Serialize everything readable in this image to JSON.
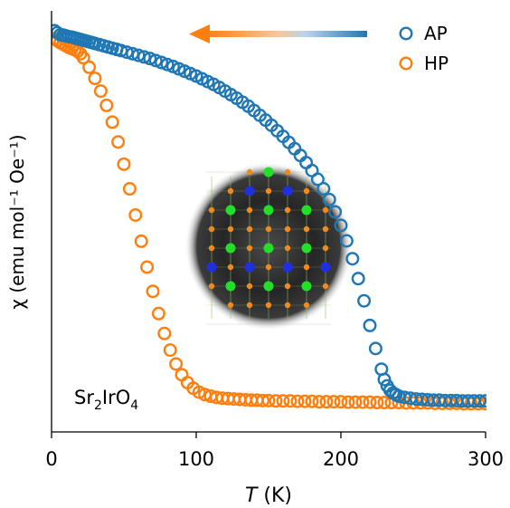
{
  "chart_data": {
    "type": "scatter",
    "xlabel_var": "T",
    "xlabel_unit": "(K)",
    "ylabel": "χ (emu mol⁻¹ Oe⁻¹)",
    "xlim": [
      0,
      300
    ],
    "ylim": [
      0,
      1.06
    ],
    "x_ticks": [
      0,
      100,
      200,
      300
    ],
    "y_ticks_visible": false,
    "grid": false,
    "legend_position": "top-right",
    "annotation": {
      "text_main": "Sr",
      "sub1": "2",
      "mid": "IrO",
      "sub2": "4"
    },
    "arrow": {
      "direction": "left",
      "from_color": "#1f77b4",
      "to_color": "#ff7f0e"
    },
    "inset": "crystal-structure-image",
    "series": [
      {
        "name": "AP",
        "color": "#1f77b4",
        "marker": "open-circle",
        "x": [
          2,
          4,
          6,
          8,
          10,
          12,
          14,
          16,
          18,
          20,
          22,
          24,
          26,
          28,
          30,
          33,
          36,
          39,
          42,
          45,
          48,
          52,
          56,
          60,
          64,
          68,
          72,
          76,
          80,
          84,
          88,
          92,
          96,
          100,
          104,
          108,
          112,
          116,
          120,
          124,
          128,
          132,
          136,
          140,
          144,
          148,
          152,
          156,
          160,
          164,
          168,
          172,
          176,
          180,
          184,
          188,
          192,
          196,
          200,
          204,
          208,
          212,
          216,
          220,
          224,
          228,
          230,
          232,
          234,
          236,
          238,
          240,
          244,
          248,
          252,
          256,
          260,
          264,
          268,
          272,
          276,
          280,
          284,
          288,
          292,
          296,
          300
        ],
        "y": [
          1.01,
          1.005,
          1.0,
          0.999,
          0.997,
          0.995,
          0.994,
          0.992,
          0.99,
          0.988,
          0.986,
          0.984,
          0.982,
          0.98,
          0.978,
          0.975,
          0.972,
          0.969,
          0.966,
          0.963,
          0.96,
          0.956,
          0.952,
          0.948,
          0.944,
          0.94,
          0.935,
          0.93,
          0.925,
          0.92,
          0.914,
          0.908,
          0.902,
          0.896,
          0.889,
          0.882,
          0.875,
          0.867,
          0.858,
          0.849,
          0.84,
          0.83,
          0.82,
          0.809,
          0.797,
          0.785,
          0.772,
          0.758,
          0.744,
          0.729,
          0.713,
          0.696,
          0.678,
          0.658,
          0.636,
          0.612,
          0.585,
          0.554,
          0.52,
          0.481,
          0.436,
          0.386,
          0.33,
          0.268,
          0.21,
          0.158,
          0.132,
          0.116,
          0.105,
          0.098,
          0.094,
          0.09,
          0.087,
          0.085,
          0.083,
          0.082,
          0.081,
          0.08,
          0.08,
          0.079,
          0.079,
          0.079,
          0.078,
          0.078,
          0.078,
          0.078,
          0.078
        ]
      },
      {
        "name": "HP",
        "color": "#ff7f0e",
        "marker": "open-circle",
        "x": [
          2,
          4,
          6,
          8,
          10,
          12,
          14,
          16,
          18,
          20,
          22,
          26,
          30,
          34,
          38,
          42,
          46,
          50,
          54,
          58,
          62,
          66,
          70,
          74,
          78,
          82,
          86,
          90,
          94,
          98,
          102,
          106,
          110,
          114,
          118,
          122,
          126,
          130,
          134,
          138,
          142,
          146,
          150,
          155,
          160,
          165,
          170,
          175,
          180,
          185,
          190,
          195,
          200,
          205,
          210,
          215,
          220,
          225,
          230,
          235,
          240,
          245,
          250,
          255,
          260,
          265,
          270,
          275,
          280,
          285,
          290,
          295,
          300
        ],
        "y": [
          0.99,
          0.985,
          0.98,
          0.976,
          0.972,
          0.968,
          0.965,
          0.962,
          0.958,
          0.952,
          0.942,
          0.918,
          0.89,
          0.858,
          0.822,
          0.78,
          0.73,
          0.674,
          0.612,
          0.546,
          0.48,
          0.415,
          0.354,
          0.298,
          0.248,
          0.206,
          0.171,
          0.144,
          0.124,
          0.11,
          0.1,
          0.094,
          0.09,
          0.087,
          0.085,
          0.084,
          0.083,
          0.082,
          0.081,
          0.08,
          0.08,
          0.079,
          0.079,
          0.078,
          0.078,
          0.078,
          0.077,
          0.077,
          0.077,
          0.076,
          0.076,
          0.076,
          0.076,
          0.075,
          0.075,
          0.075,
          0.075,
          0.074,
          0.074,
          0.074,
          0.074,
          0.073,
          0.073,
          0.073,
          0.073,
          0.072,
          0.072,
          0.072,
          0.072,
          0.071,
          0.071,
          0.071,
          0.071
        ]
      }
    ]
  }
}
